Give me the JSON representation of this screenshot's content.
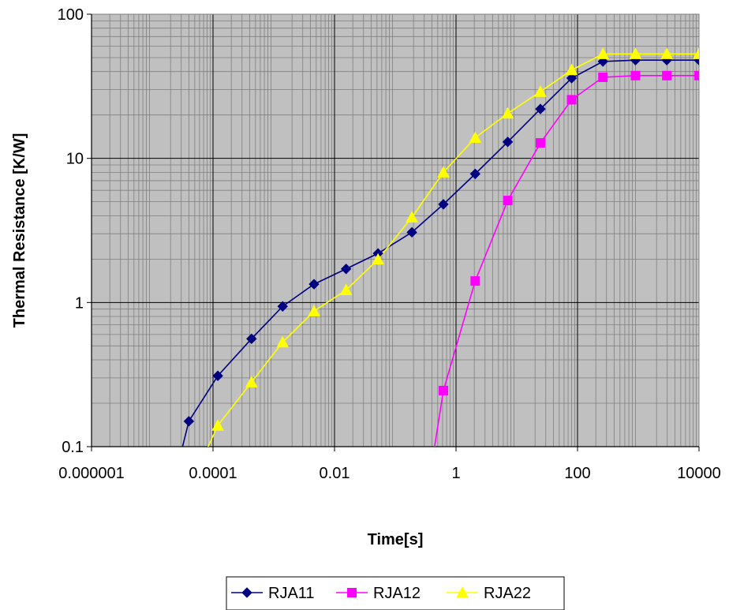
{
  "chart_data": {
    "type": "line",
    "xlabel": "Time[s]",
    "ylabel": "Thermal Resistance [K/W]",
    "x_scale": "log",
    "y_scale": "log",
    "xlim": [
      1e-06,
      10000
    ],
    "ylim": [
      0.1,
      100
    ],
    "x_ticks": [
      {
        "value": 1e-06,
        "label": "0.000001"
      },
      {
        "value": 0.0001,
        "label": "0.0001"
      },
      {
        "value": 0.01,
        "label": "0.01"
      },
      {
        "value": 1,
        "label": "1"
      },
      {
        "value": 100,
        "label": "100"
      },
      {
        "value": 10000,
        "label": "10000"
      }
    ],
    "y_ticks": [
      {
        "value": 0.1,
        "label": "0.1"
      },
      {
        "value": 1,
        "label": "1"
      },
      {
        "value": 10,
        "label": "10"
      },
      {
        "value": 100,
        "label": "100"
      }
    ],
    "grid": true,
    "plot_background": "#c0c0c0",
    "legend_position": "bottom-center",
    "series": [
      {
        "name": "RJA11",
        "color": "#000080",
        "marker": "diamond",
        "x": [
          2.4e-05,
          4e-05,
          0.00012,
          0.00043,
          0.0014,
          0.0046,
          0.0155,
          0.052,
          0.188,
          0.62,
          2.07,
          7.1,
          24.5,
          80,
          262,
          900,
          2950,
          10000
        ],
        "y": [
          0.063,
          0.15,
          0.31,
          0.56,
          0.94,
          1.34,
          1.71,
          2.19,
          3.07,
          4.8,
          7.8,
          13.0,
          22.0,
          36.0,
          47.0,
          48.0,
          48.0,
          48.0
        ]
      },
      {
        "name": "RJA12",
        "color": "#ff00ff",
        "marker": "square",
        "x": [
          0.188,
          0.62,
          2.07,
          7.1,
          24.5,
          80,
          262,
          900,
          2950,
          10000
        ],
        "y": [
          0.01,
          0.245,
          1.41,
          5.1,
          12.8,
          25.5,
          36.5,
          37.5,
          37.5,
          37.5
        ],
        "clip": true
      },
      {
        "name": "RJA22",
        "color": "#ffff00",
        "marker": "triangle",
        "x": [
          2.4e-05,
          0.00012,
          0.00043,
          0.0014,
          0.0046,
          0.0155,
          0.052,
          0.188,
          0.62,
          2.07,
          7.1,
          24.5,
          80,
          262,
          900,
          2950,
          10000
        ],
        "y": [
          0.032,
          0.14,
          0.28,
          0.53,
          0.87,
          1.22,
          1.99,
          3.9,
          8.0,
          13.9,
          20.5,
          29.0,
          41.0,
          53.0,
          53.0,
          53.0,
          53.0
        ]
      }
    ]
  }
}
